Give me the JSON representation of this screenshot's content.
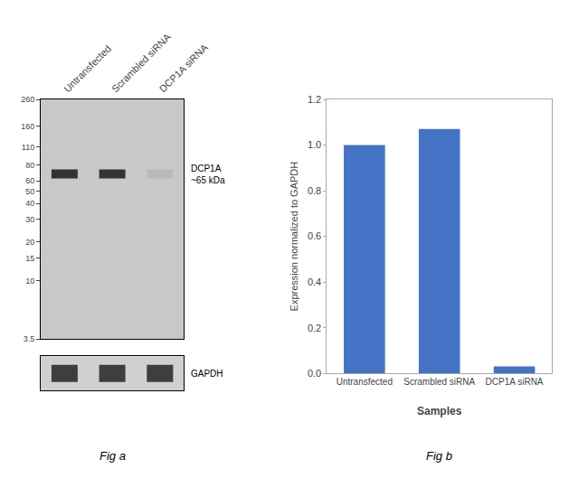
{
  "chart_data": [
    {
      "type": "blot",
      "title": "Fig a",
      "categories": [
        "Untransfected",
        "Scrambled siRNA",
        "DCP1A siRNA"
      ],
      "log": "y",
      "ylim": [
        3.5,
        260
      ],
      "yticks": [
        260,
        160,
        110,
        80,
        60,
        50,
        40,
        30,
        20,
        15,
        10,
        3.5
      ],
      "grid": false,
      "series": [
        {
          "name": "DCP1A\n~65 kDa",
          "values": [
            68,
            68,
            68
          ],
          "intensity": [
            0.82,
            0.82,
            0.08
          ]
        },
        {
          "name": "GAPDH",
          "intensity": [
            0.78,
            0.78,
            0.78
          ]
        }
      ]
    },
    {
      "type": "bar",
      "title": "Fig b",
      "categories": [
        "Untransfected",
        "Scrambled siRNA",
        "DCP1A siRNA"
      ],
      "values": [
        1.0,
        1.07,
        0.03
      ],
      "color": "#4472C4",
      "xlabel": "Samples",
      "ylabel": "Expression normalized to GAPDH",
      "ylim": [
        0,
        1.2
      ],
      "yticks": [
        {
          "value": 0,
          "label": "0.0"
        },
        0.2,
        0.4,
        0.6,
        0.8,
        {
          "value": 1.0,
          "label": "1.0"
        },
        1.2
      ],
      "grid": false
    }
  ]
}
